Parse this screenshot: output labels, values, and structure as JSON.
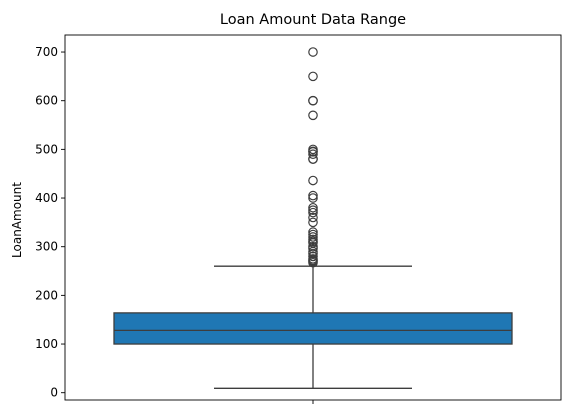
{
  "chart_data": {
    "type": "box",
    "title": "Loan Amount Data Range",
    "xlabel": "",
    "ylabel": "LoanAmount",
    "ylim": [
      -15,
      735
    ],
    "yticks": [
      0,
      100,
      200,
      300,
      400,
      500,
      600,
      700
    ],
    "grid": false,
    "legend": "none",
    "box": {
      "whisker_low": 9,
      "q1": 100,
      "median": 128,
      "q3": 164,
      "whisker_high": 260,
      "color": "#1f77b4",
      "edge_color": "#3d3d3d",
      "outliers": [
        700,
        650,
        600,
        600,
        570,
        500,
        496,
        495,
        490,
        480,
        480,
        436,
        405,
        400,
        380,
        375,
        370,
        360,
        350,
        330,
        325,
        320,
        315,
        311,
        308,
        300,
        296,
        290,
        286,
        280,
        275,
        272,
        270,
        267
      ]
    }
  }
}
